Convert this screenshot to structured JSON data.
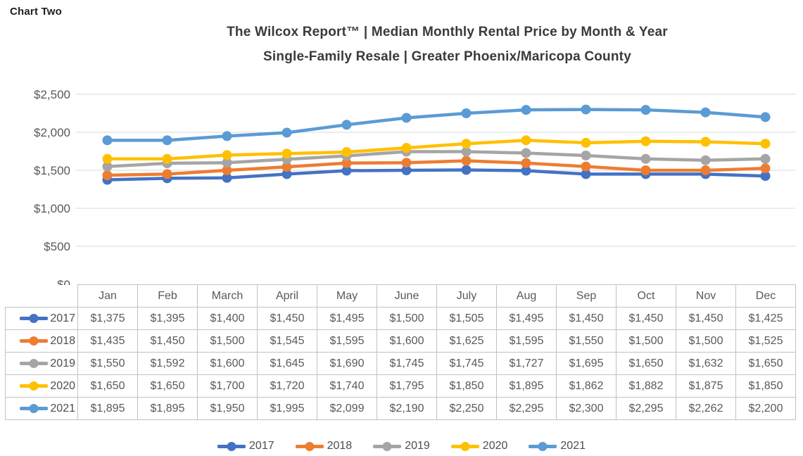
{
  "page": {
    "chart_label": "Chart Two"
  },
  "title": {
    "line1": "The Wilcox Report™ | Median Monthly Rental Price by Month & Year",
    "line2": "Single-Family Resale | Greater Phoenix/Maricopa County"
  },
  "chart_data": {
    "type": "line",
    "title": "The Wilcox Report™ | Median Monthly Rental Price by Month & Year — Single-Family Resale | Greater Phoenix/Maricopa County",
    "categories": [
      "Jan",
      "Feb",
      "March",
      "April",
      "May",
      "June",
      "July",
      "Aug",
      "Sep",
      "Oct",
      "Nov",
      "Dec"
    ],
    "series": [
      {
        "name": "2017",
        "color": "#4472C4",
        "values": [
          1375,
          1395,
          1400,
          1450,
          1495,
          1500,
          1505,
          1495,
          1450,
          1450,
          1450,
          1425
        ]
      },
      {
        "name": "2018",
        "color": "#ED7D31",
        "values": [
          1435,
          1450,
          1500,
          1545,
          1595,
          1600,
          1625,
          1595,
          1550,
          1500,
          1500,
          1525
        ]
      },
      {
        "name": "2019",
        "color": "#A5A5A5",
        "values": [
          1550,
          1592,
          1600,
          1645,
          1690,
          1745,
          1745,
          1727,
          1695,
          1650,
          1632,
          1650
        ]
      },
      {
        "name": "2020",
        "color": "#FFC000",
        "values": [
          1650,
          1650,
          1700,
          1720,
          1740,
          1795,
          1850,
          1895,
          1862,
          1882,
          1875,
          1850
        ]
      },
      {
        "name": "2021",
        "color": "#5B9BD5",
        "values": [
          1895,
          1895,
          1950,
          1995,
          2099,
          2190,
          2250,
          2295,
          2300,
          2295,
          2262,
          2200
        ]
      }
    ],
    "y_axis": {
      "min": 0,
      "max": 2500,
      "step": 500,
      "tick_labels": [
        "$0",
        "$500",
        "$1,000",
        "$1,500",
        "$2,000",
        "$2,500"
      ]
    },
    "value_format": "currency",
    "grid": true,
    "legend_position": "bottom",
    "marker": "circle"
  }
}
